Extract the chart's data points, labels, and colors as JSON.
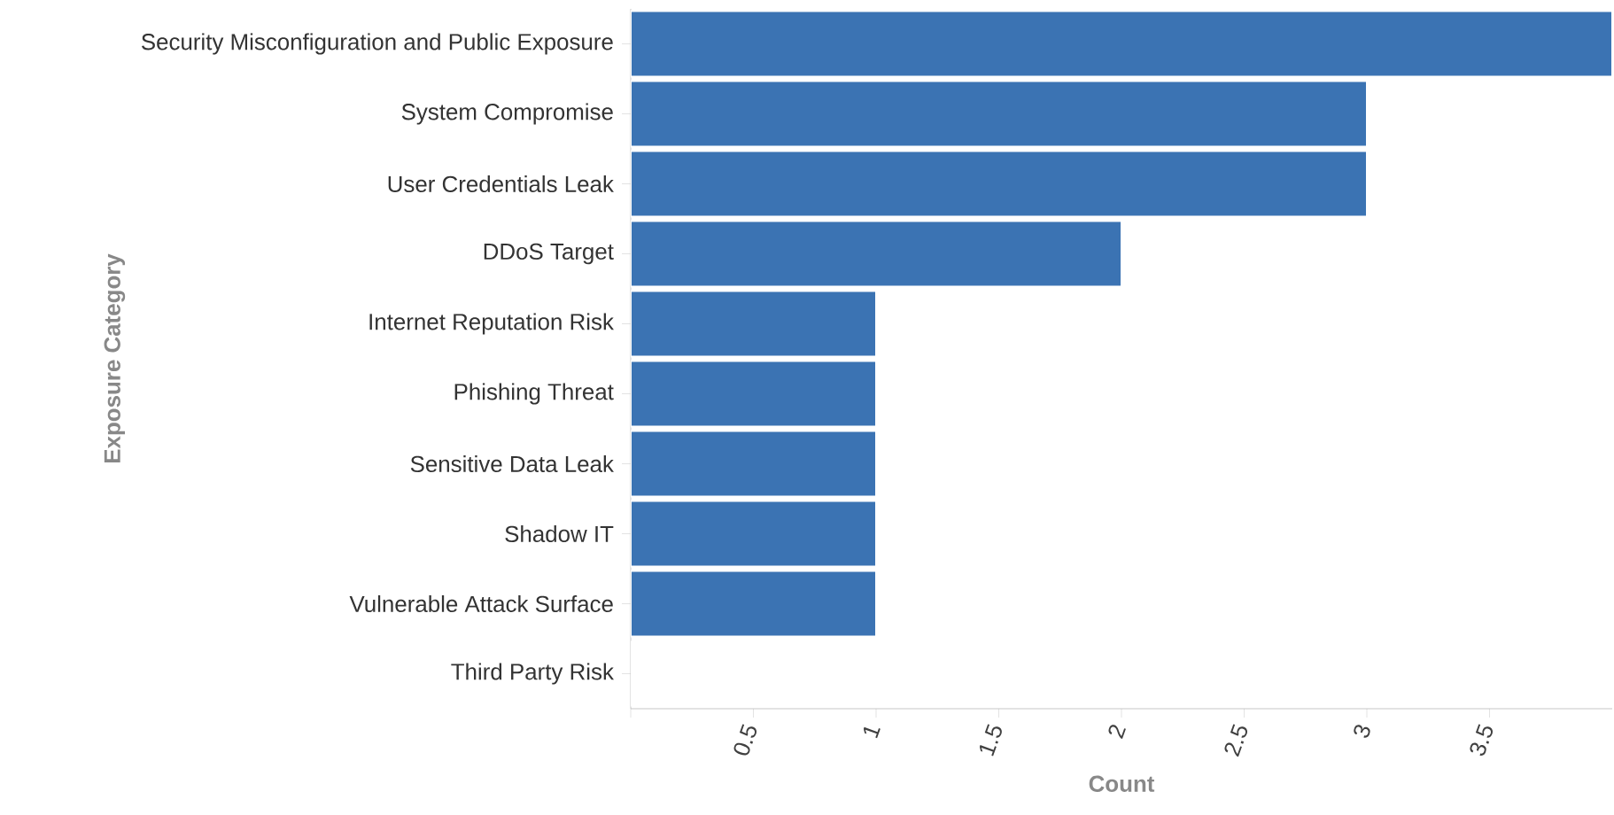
{
  "chart_data": {
    "type": "bar",
    "orientation": "horizontal",
    "xlabel": "Count",
    "ylabel": "Exposure Category",
    "categories": [
      "Security Misconfiguration and Public Exposure",
      "System Compromise",
      "User Credentials Leak",
      "DDoS Target",
      "Internet Reputation Risk",
      "Phishing Threat",
      "Sensitive Data Leak",
      "Shadow IT",
      "Vulnerable Attack Surface",
      "Third Party Risk"
    ],
    "values": [
      4,
      3,
      3,
      2,
      1,
      1,
      1,
      1,
      1,
      0
    ],
    "color": "#3b73b3",
    "xlim": [
      0,
      4
    ],
    "xticks": [
      {
        "value": 0,
        "label": null
      },
      0.5,
      1,
      1.5,
      2,
      2.5,
      3,
      3.5
    ]
  }
}
